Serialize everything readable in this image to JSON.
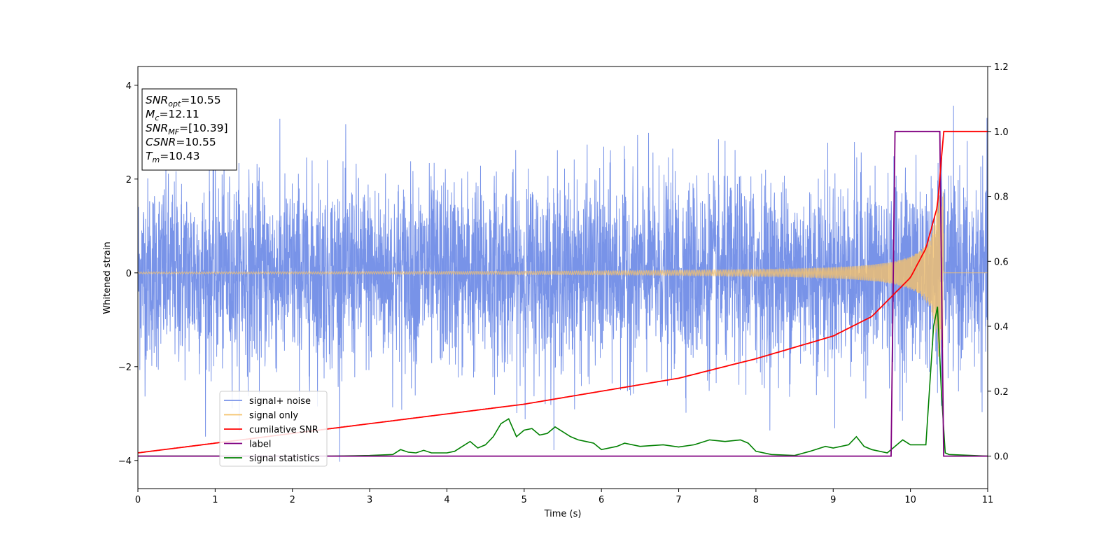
{
  "chart_data": {
    "type": "line",
    "xlabel": "Time (s)",
    "ylabel": "Whitened strain",
    "xlim": [
      0,
      11
    ],
    "ylim_left": [
      -4.6,
      4.4
    ],
    "ylim_right": [
      -0.1,
      1.2
    ],
    "x_ticks": [
      "0",
      "1",
      "2",
      "3",
      "4",
      "5",
      "6",
      "7",
      "8",
      "9",
      "10",
      "11"
    ],
    "y_ticks_left": [
      "−4",
      "−2",
      "0",
      "2",
      "4"
    ],
    "y_ticks_right": [
      "0.0",
      "0.2",
      "0.4",
      "0.6",
      "0.8",
      "1.0",
      "1.2"
    ],
    "grid": false,
    "legend_position": "lower-left",
    "annotation": {
      "lines": [
        {
          "base": "SNR",
          "sub": "opt",
          "value": "=10.55"
        },
        {
          "base": "M",
          "sub": "c",
          "value": "=12.11"
        },
        {
          "base": "SNR",
          "sub": "MF",
          "value": "=[10.39]"
        },
        {
          "base": "CSNR",
          "sub": "",
          "value": "=10.55"
        },
        {
          "base": "T",
          "sub": "m",
          "value": "=10.43"
        }
      ]
    },
    "series": [
      {
        "name": "signal+ noise",
        "axis": "left",
        "color": "#7893e8",
        "kind": "noise",
        "description_values": {
          "std": 1.0,
          "t_start": 0,
          "t_end": 11,
          "min_observed": -4.15,
          "max_observed": 4.02
        }
      },
      {
        "name": "signal only",
        "axis": "left",
        "color": "#f5c26b",
        "kind": "chirp",
        "values": {
          "t_start": 0,
          "t_merge": 10.43,
          "amp_start": 0.02,
          "amp_peak": 1.8
        }
      },
      {
        "name": "cumilative SNR",
        "axis": "right",
        "color": "#ff0000",
        "x": [
          0,
          1,
          2,
          3,
          4,
          5,
          6,
          7,
          8,
          9,
          9.5,
          10,
          10.2,
          10.35,
          10.43,
          11
        ],
        "values": [
          0.01,
          0.04,
          0.07,
          0.1,
          0.13,
          0.16,
          0.2,
          0.24,
          0.3,
          0.37,
          0.43,
          0.55,
          0.64,
          0.77,
          1.0,
          1.0
        ]
      },
      {
        "name": "label",
        "axis": "right",
        "color": "#800080",
        "x": [
          0,
          9.75,
          9.8,
          10.38,
          10.43,
          11
        ],
        "values": [
          0,
          0,
          1,
          1,
          0,
          0
        ]
      },
      {
        "name": "signal statistics",
        "axis": "right",
        "color": "#008000",
        "x": [
          0,
          2.5,
          3.0,
          3.3,
          3.4,
          3.5,
          3.6,
          3.7,
          3.8,
          4.0,
          4.1,
          4.2,
          4.3,
          4.4,
          4.5,
          4.6,
          4.7,
          4.8,
          4.9,
          5.0,
          5.1,
          5.2,
          5.3,
          5.4,
          5.5,
          5.6,
          5.7,
          5.8,
          5.9,
          6.0,
          6.2,
          6.3,
          6.5,
          6.8,
          7.0,
          7.2,
          7.4,
          7.6,
          7.8,
          7.9,
          8.0,
          8.2,
          8.5,
          8.7,
          8.9,
          9.0,
          9.2,
          9.3,
          9.4,
          9.5,
          9.7,
          9.9,
          10.0,
          10.2,
          10.3,
          10.35,
          10.4,
          10.45,
          10.5,
          11
        ],
        "values": [
          0,
          0,
          0.002,
          0.005,
          0.02,
          0.012,
          0.01,
          0.018,
          0.01,
          0.01,
          0.015,
          0.03,
          0.045,
          0.025,
          0.035,
          0.06,
          0.1,
          0.115,
          0.06,
          0.08,
          0.085,
          0.065,
          0.07,
          0.09,
          0.075,
          0.06,
          0.05,
          0.045,
          0.04,
          0.02,
          0.03,
          0.04,
          0.03,
          0.035,
          0.028,
          0.035,
          0.05,
          0.045,
          0.05,
          0.04,
          0.015,
          0.005,
          0.002,
          0.015,
          0.03,
          0.025,
          0.035,
          0.06,
          0.03,
          0.02,
          0.01,
          0.05,
          0.035,
          0.035,
          0.4,
          0.46,
          0.2,
          0.01,
          0.005,
          0
        ]
      }
    ]
  }
}
